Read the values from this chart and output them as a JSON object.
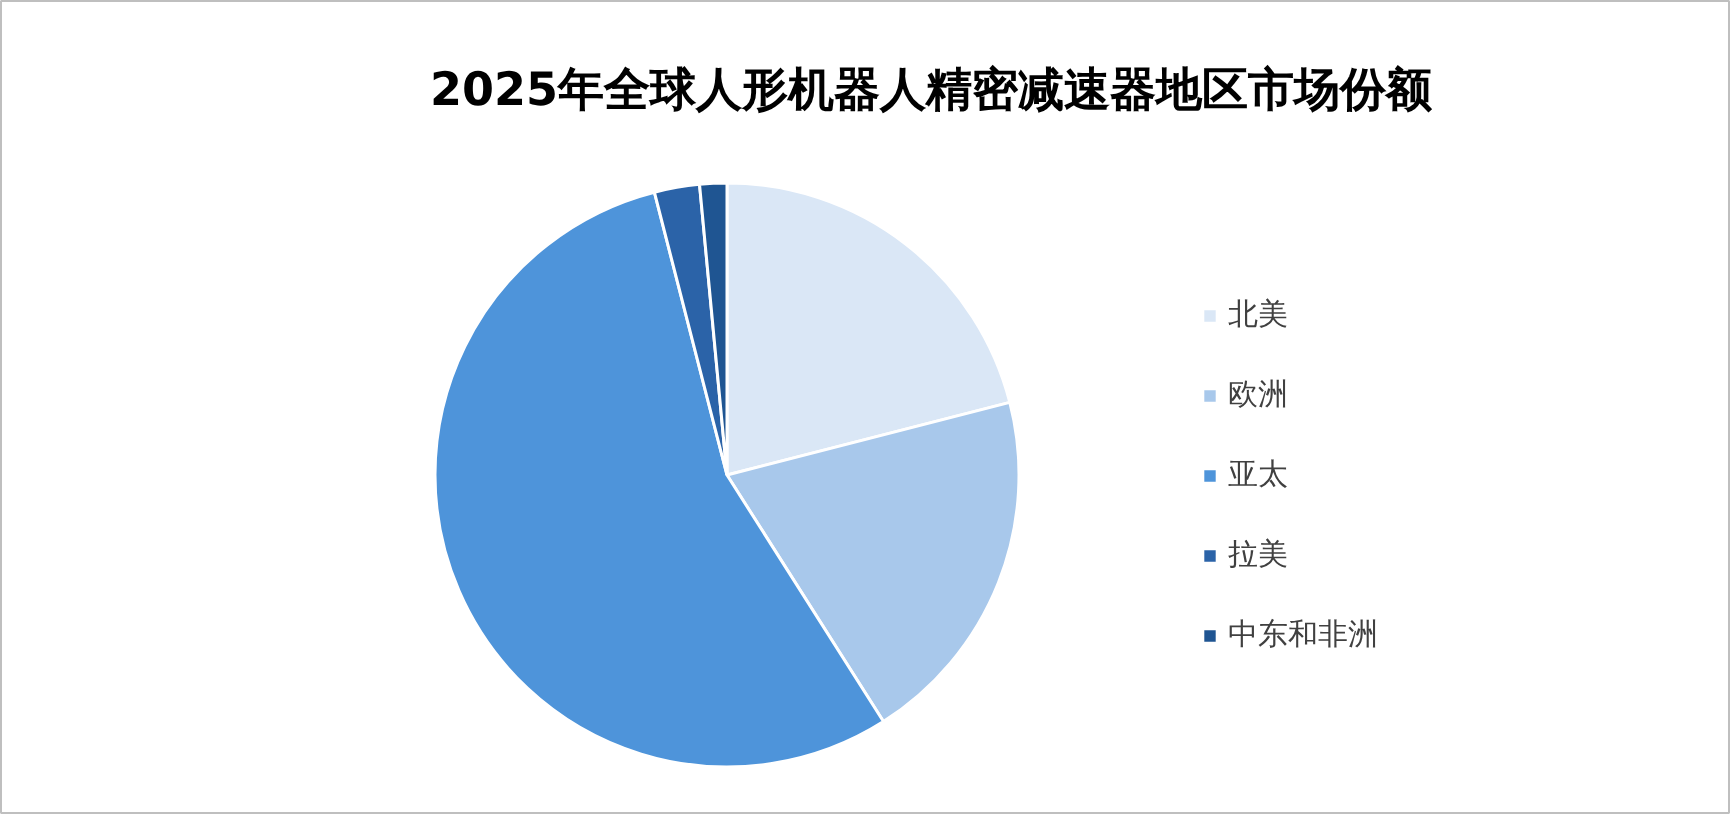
{
  "chart_data": {
    "type": "pie",
    "title": "2025年全球人形机器人精密减速器地区市场份额",
    "categories": [
      "北美",
      "欧洲",
      "亚太",
      "拉美",
      "中东和非洲"
    ],
    "values": [
      21,
      20,
      55,
      2.5,
      1.5
    ],
    "colors": [
      "#dae7f6",
      "#a8c8eb",
      "#4e94da",
      "#2b63a8",
      "#1f5592"
    ],
    "legend": "right"
  }
}
